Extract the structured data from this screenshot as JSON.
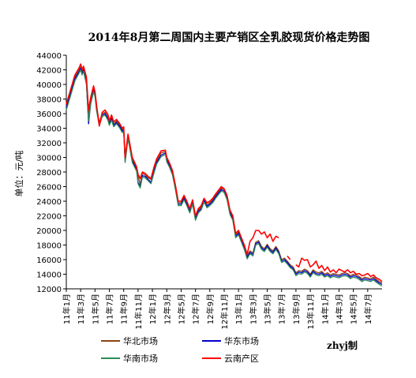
{
  "chart_data": {
    "type": "line",
    "title": "2014年8月第二周国内主要产销区全乳胶现货价格走势图",
    "ylabel": "单位：元/吨",
    "ylim": [
      12000,
      44000
    ],
    "yticks": [
      "44000",
      "42000",
      "40000",
      "38000",
      "36000",
      "34000",
      "32000",
      "30000",
      "28000",
      "26000",
      "24000",
      "22000",
      "20000",
      "18000",
      "16000",
      "14000",
      "12000"
    ],
    "categories": [
      "11年1月",
      "11年3月",
      "11年5月",
      "11年7月",
      "11年9月",
      "11年11月",
      "12年1月",
      "12年3月",
      "12年5月",
      "12年7月",
      "12年9月",
      "12年11月",
      "13年1月",
      "13年3月",
      "13年5月",
      "13年7月",
      "13年9月",
      "13年11月",
      "14年1月",
      "14年3月",
      "14年5月",
      "14年7月"
    ],
    "x_range": [
      0,
      22
    ],
    "grid": false,
    "legend_position": "bottom",
    "series": [
      {
        "name": "华北市场",
        "color": "#8B4513",
        "x": [
          0,
          0.3,
          0.6,
          0.9,
          1.0,
          1.1,
          1.2,
          1.4,
          1.55,
          1.7,
          1.9,
          2.0,
          2.1,
          2.3,
          2.5,
          2.7,
          2.9,
          3.0,
          3.15,
          3.3,
          3.5,
          3.7,
          3.9,
          4.0,
          4.1,
          4.3,
          4.6,
          4.9,
          5.0,
          5.15,
          5.3,
          5.5,
          5.7,
          5.9,
          6.1,
          6.3,
          6.6,
          6.9,
          7.0,
          7.2,
          7.4,
          7.6,
          7.8,
          8.0,
          8.2,
          8.4,
          8.6,
          8.8,
          9.0,
          9.2,
          9.4,
          9.6,
          9.8,
          10.0,
          10.2,
          10.4,
          10.6,
          10.8,
          11.0,
          11.2,
          11.4,
          11.6,
          11.8,
          12.0,
          12.2,
          12.4,
          12.6,
          12.8,
          13.0,
          13.2,
          13.4,
          13.6,
          13.8,
          14.0,
          14.2,
          14.4,
          14.6,
          14.8,
          15.0,
          15.2,
          15.4,
          15.6,
          15.8,
          16.0,
          16.2,
          16.4,
          16.6,
          16.8,
          17.0,
          17.2,
          17.4,
          17.6,
          17.8,
          18.0,
          18.2,
          18.4,
          18.6,
          18.8,
          19.0,
          19.2,
          19.4,
          19.6,
          19.8,
          20.0,
          20.2,
          20.4,
          20.6,
          20.8,
          21.0,
          21.2,
          21.4,
          21.6,
          21.8,
          22.0
        ],
        "y": [
          37000,
          39000,
          41000,
          42000,
          42600,
          41800,
          42300,
          40500,
          36000,
          37800,
          39500,
          38800,
          37000,
          34800,
          36000,
          36200,
          35500,
          34800,
          35500,
          34600,
          35000,
          34500,
          33800,
          34000,
          29800,
          33000,
          29800,
          28500,
          27500,
          26300,
          27800,
          27600,
          27200,
          27000,
          28300,
          29500,
          30600,
          30800,
          29800,
          29000,
          28000,
          26000,
          23800,
          23800,
          24600,
          23800,
          22800,
          24000,
          21800,
          22800,
          23200,
          24300,
          23500,
          23800,
          24200,
          24800,
          25300,
          25800,
          25600,
          24600,
          22600,
          21800,
          19400,
          19800,
          18800,
          17800,
          16500,
          17200,
          16900,
          18400,
          18600,
          17800,
          17500,
          18100,
          17500,
          17200,
          17800,
          17200,
          16000,
          16200,
          15800,
          15300,
          15000,
          14200,
          14500,
          14400,
          14700,
          14500,
          14000,
          14600,
          14300,
          14200,
          14400,
          14000,
          14200,
          13900,
          14100,
          14000,
          13900,
          14100,
          14200,
          14100,
          13800,
          14000,
          13900,
          13700,
          13400,
          13600,
          13500,
          13400,
          13600,
          13300,
          13000,
          12800
        ]
      },
      {
        "name": "华东市场",
        "color": "#0000CD",
        "x": [
          0,
          0.3,
          0.6,
          0.9,
          1.0,
          1.1,
          1.2,
          1.4,
          1.55,
          1.7,
          1.9,
          2.0,
          2.1,
          2.3,
          2.5,
          2.7,
          2.9,
          3.0,
          3.15,
          3.3,
          3.5,
          3.7,
          3.9,
          4.0,
          4.1,
          4.3,
          4.6,
          4.9,
          5.0,
          5.15,
          5.3,
          5.5,
          5.7,
          5.9,
          6.1,
          6.3,
          6.6,
          6.9,
          7.0,
          7.2,
          7.4,
          7.6,
          7.8,
          8.0,
          8.2,
          8.4,
          8.6,
          8.8,
          9.0,
          9.2,
          9.4,
          9.6,
          9.8,
          10.0,
          10.2,
          10.4,
          10.6,
          10.8,
          11.0,
          11.2,
          11.4,
          11.6,
          11.8,
          12.0,
          12.2,
          12.4,
          12.6,
          12.8,
          13.0,
          13.2,
          13.4,
          13.6,
          13.8,
          14.0,
          14.2,
          14.4,
          14.6,
          14.8,
          15.0,
          15.2,
          15.4,
          15.6,
          15.8,
          16.0,
          16.2,
          16.4,
          16.6,
          16.8,
          17.0,
          17.2,
          17.4,
          17.6,
          17.8,
          18.0,
          18.2,
          18.4,
          18.6,
          18.8,
          19.0,
          19.2,
          19.4,
          19.6,
          19.8,
          20.0,
          20.2,
          20.4,
          20.6,
          20.8,
          21.0,
          21.2,
          21.4,
          21.6,
          21.8,
          22.0
        ],
        "y": [
          36800,
          38800,
          40800,
          41800,
          42200,
          41500,
          42000,
          40200,
          34600,
          37500,
          39200,
          38500,
          36700,
          34500,
          35800,
          36000,
          35300,
          34600,
          35300,
          34400,
          34800,
          34300,
          33600,
          33800,
          29500,
          32800,
          29500,
          28300,
          26600,
          26000,
          27500,
          27400,
          27000,
          26600,
          28000,
          29300,
          30300,
          30600,
          29600,
          28800,
          27800,
          25800,
          23600,
          23600,
          24400,
          23600,
          22600,
          23800,
          21600,
          22600,
          23000,
          24100,
          23300,
          23600,
          24000,
          24600,
          25100,
          25600,
          25400,
          24400,
          22400,
          21600,
          19200,
          19600,
          18600,
          17600,
          16300,
          17000,
          16700,
          18200,
          18400,
          17600,
          17300,
          17900,
          17300,
          17000,
          17600,
          17000,
          15800,
          16000,
          15600,
          15100,
          14800,
          14000,
          14300,
          14200,
          14500,
          14300,
          13800,
          14400,
          14100,
          14000,
          14200,
          13800,
          14000,
          13700,
          13900,
          13800,
          13700,
          13900,
          14000,
          13900,
          13600,
          13800,
          13700,
          13500,
          13200,
          13400,
          13300,
          13200,
          13400,
          13100,
          12800,
          12600
        ]
      },
      {
        "name": "华南市场",
        "color": "#2E8B57",
        "x": [
          0,
          0.3,
          0.6,
          0.9,
          1.0,
          1.1,
          1.2,
          1.4,
          1.55,
          1.7,
          1.9,
          2.0,
          2.1,
          2.3,
          2.5,
          2.7,
          2.9,
          3.0,
          3.15,
          3.3,
          3.5,
          3.7,
          3.9,
          4.0,
          4.1,
          4.3,
          4.6,
          4.9,
          5.0,
          5.15,
          5.3,
          5.5,
          5.7,
          5.9,
          6.1,
          6.3,
          6.6,
          6.9,
          7.0,
          7.2,
          7.4,
          7.6,
          7.8,
          8.0,
          8.2,
          8.4,
          8.6,
          8.8,
          9.0,
          9.2,
          9.4,
          9.6,
          9.8,
          10.0,
          10.2,
          10.4,
          10.6,
          10.8,
          11.0,
          11.2,
          11.4,
          11.6,
          11.8,
          12.0,
          12.2,
          12.4,
          12.6,
          12.8,
          13.0,
          13.2,
          13.4,
          13.6,
          13.8,
          14.0,
          14.2,
          14.4,
          14.6,
          14.8,
          15.0,
          15.2,
          15.4,
          15.6,
          15.8,
          16.0,
          16.2,
          16.4,
          16.6,
          16.8,
          17.0,
          17.2,
          17.4,
          17.6,
          17.8,
          18.0,
          18.2,
          18.4,
          18.6,
          18.8,
          19.0,
          19.2,
          19.4,
          19.6,
          19.8,
          20.0,
          20.2,
          20.4,
          20.6,
          20.8,
          21.0,
          21.2,
          21.4,
          21.6,
          21.8,
          22.0
        ],
        "y": [
          36500,
          38500,
          40500,
          41600,
          42000,
          41300,
          41800,
          40000,
          35000,
          37300,
          39000,
          38300,
          36500,
          34300,
          35600,
          35800,
          35100,
          34400,
          35100,
          34200,
          34600,
          34100,
          33400,
          33600,
          29300,
          32600,
          29300,
          28100,
          26400,
          25800,
          27300,
          27200,
          26800,
          26400,
          27800,
          29100,
          30100,
          30400,
          29400,
          28600,
          27600,
          25600,
          23400,
          23400,
          24200,
          23400,
          22400,
          23600,
          21400,
          22400,
          22800,
          23900,
          23100,
          23400,
          23800,
          24400,
          24900,
          25400,
          25200,
          24200,
          22200,
          21400,
          19000,
          19400,
          18400,
          17400,
          16100,
          16800,
          16500,
          18000,
          18200,
          17400,
          17100,
          17700,
          17100,
          16800,
          17400,
          16800,
          15600,
          15800,
          15400,
          14900,
          14600,
          13800,
          14100,
          14000,
          14300,
          14100,
          13600,
          14200,
          13900,
          13800,
          14000,
          13600,
          13800,
          13500,
          13700,
          13600,
          13500,
          13700,
          13800,
          13700,
          13400,
          13600,
          13500,
          13300,
          13000,
          13200,
          13100,
          13000,
          13200,
          12900,
          12600,
          12400
        ]
      },
      {
        "name": "云南产区",
        "color": "#FF0000",
        "x": [
          0,
          0.3,
          0.6,
          0.9,
          1.0,
          1.1,
          1.2,
          1.4,
          1.55,
          1.7,
          1.9,
          2.0,
          2.1,
          2.3,
          2.5,
          2.7,
          2.9,
          3.0,
          3.15,
          3.3,
          3.5,
          3.7,
          3.9,
          4.0,
          4.1,
          4.3,
          4.6,
          4.9,
          5.0,
          5.15,
          5.3,
          5.5,
          5.7,
          5.9,
          6.1,
          6.3,
          6.6,
          6.9,
          7.0,
          7.2,
          7.4,
          7.6,
          7.8,
          8.0,
          8.2,
          8.4,
          8.6,
          8.8,
          9.0,
          9.2,
          9.4,
          9.6,
          9.8,
          10.0,
          10.2,
          10.4,
          10.6,
          10.8,
          11.0,
          11.2,
          11.4,
          11.6,
          11.8,
          12.0,
          12.2,
          12.4,
          12.6,
          12.8,
          13.0,
          13.2,
          13.4,
          13.6,
          13.8,
          14.0,
          14.2,
          14.4,
          14.6,
          14.8,
          15.0,
          15.2,
          15.4,
          15.6,
          15.8,
          16.0,
          16.2,
          16.4,
          16.6,
          16.8,
          17.0,
          17.2,
          17.4,
          17.6,
          17.8,
          18.0,
          18.2,
          18.4,
          18.6,
          18.8,
          19.0,
          19.2,
          19.4,
          19.6,
          19.8,
          20.0,
          20.2,
          20.4,
          20.6,
          20.8,
          21.0,
          21.2,
          21.4,
          21.6,
          21.8,
          22.0
        ],
        "y": [
          37300,
          39300,
          41300,
          42300,
          42800,
          42000,
          42500,
          41000,
          36500,
          38200,
          39800,
          39000,
          37300,
          34300,
          36200,
          36500,
          35900,
          35000,
          35800,
          34900,
          35200,
          34700,
          34000,
          34200,
          30000,
          33200,
          30000,
          28700,
          27700,
          27100,
          28000,
          27800,
          27400,
          27100,
          28600,
          29800,
          30900,
          31000,
          30000,
          29200,
          28200,
          26200,
          24000,
          24000,
          24800,
          24000,
          23000,
          24200,
          22000,
          23000,
          23400,
          24400,
          23800,
          24000,
          24400,
          25000,
          25500,
          26000,
          25700,
          24800,
          22800,
          22000,
          19600,
          20000,
          19000,
          18000,
          16700,
          18500,
          19000,
          20000,
          20000,
          19500,
          19800,
          19000,
          19500,
          18500,
          19200,
          19000,
          null,
          null,
          16500,
          16000,
          null,
          15300,
          15000,
          16200,
          15900,
          16000,
          15000,
          15300,
          15800,
          14800,
          15200,
          14500,
          15000,
          14300,
          14600,
          14200,
          14700,
          14500,
          14300,
          14600,
          14200,
          14400,
          14000,
          14100,
          13800,
          13900,
          14100,
          13700,
          13900,
          13500,
          13300,
          13000
        ]
      }
    ]
  },
  "footer": {
    "credit": "zhyj制"
  }
}
